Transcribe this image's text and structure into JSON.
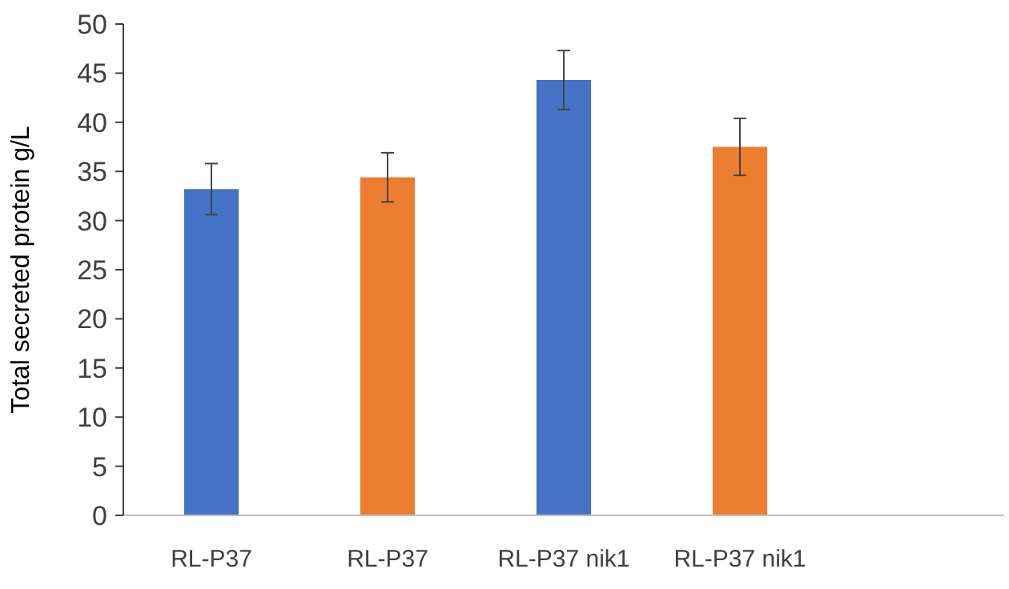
{
  "chart_data": {
    "type": "bar",
    "ylabel": "Total secreted protein g/L",
    "categories": [
      "RL-P37",
      "RL-P37",
      "RL-P37 nik1",
      "RL-P37 nik1",
      null
    ],
    "values": [
      33.2,
      34.4,
      44.3,
      37.5,
      null
    ],
    "errors": [
      2.6,
      2.5,
      3,
      2.9,
      null
    ],
    "colors": [
      "#4472c4",
      "#ed7d31",
      "#4472c4",
      "#ed7d31",
      null
    ],
    "ylim": [
      0,
      50
    ],
    "yticks": [
      0,
      5,
      10,
      15,
      20,
      25,
      30,
      35,
      40,
      45,
      50
    ],
    "grid": false
  }
}
